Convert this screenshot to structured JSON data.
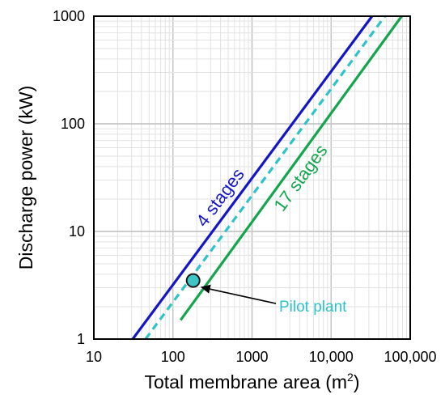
{
  "chart_data": {
    "type": "line",
    "xlabel": "Total membrane area (m",
    "xlabel_superscript": "2",
    "xlabel_suffix": ")",
    "ylabel": "Discharge power (kW)",
    "x_scale": "log",
    "y_scale": "log",
    "xlim": [
      10,
      100000
    ],
    "ylim": [
      1,
      1000
    ],
    "x_ticks": [
      {
        "value": 10,
        "label": "10"
      },
      {
        "value": 100,
        "label": "100"
      },
      {
        "value": 1000,
        "label": "1000"
      },
      {
        "value": 10000,
        "label": "10,000"
      },
      {
        "value": 100000,
        "label": "100,000"
      }
    ],
    "y_ticks": [
      {
        "value": 1,
        "label": "1"
      },
      {
        "value": 10,
        "label": "10"
      },
      {
        "value": 100,
        "label": "100"
      },
      {
        "value": 1000,
        "label": "1000"
      }
    ],
    "grid": true,
    "series": [
      {
        "key": "four",
        "name": "4 stages",
        "color": "#1515c8",
        "dash": "solid",
        "x": [
          31,
          33000
        ],
        "y": [
          1,
          1000
        ]
      },
      {
        "key": "dashed",
        "color": "#2ec3c8",
        "dash": "dashed",
        "x": [
          45,
          48000
        ],
        "y": [
          1,
          1000
        ]
      },
      {
        "key": "seventeen",
        "name": "17 stages",
        "color": "#14a54e",
        "dash": "solid",
        "x": [
          125,
          78000
        ],
        "y": [
          1.5,
          1000
        ]
      }
    ],
    "series_labels": [
      {
        "series": "four",
        "text": "4 stages",
        "color": "#1515c8"
      },
      {
        "series": "seventeen",
        "text": "17 stages",
        "color": "#14a54e"
      }
    ],
    "points": [
      {
        "name": "Pilot plant",
        "x": 180,
        "y": 3.5,
        "fill": "#3ec6c6",
        "stroke": "#1a1a1a"
      }
    ],
    "annotations": [
      {
        "text": "Pilot plant",
        "color": "#2ec3c8",
        "target_x": 180,
        "target_y": 3.5
      }
    ]
  }
}
